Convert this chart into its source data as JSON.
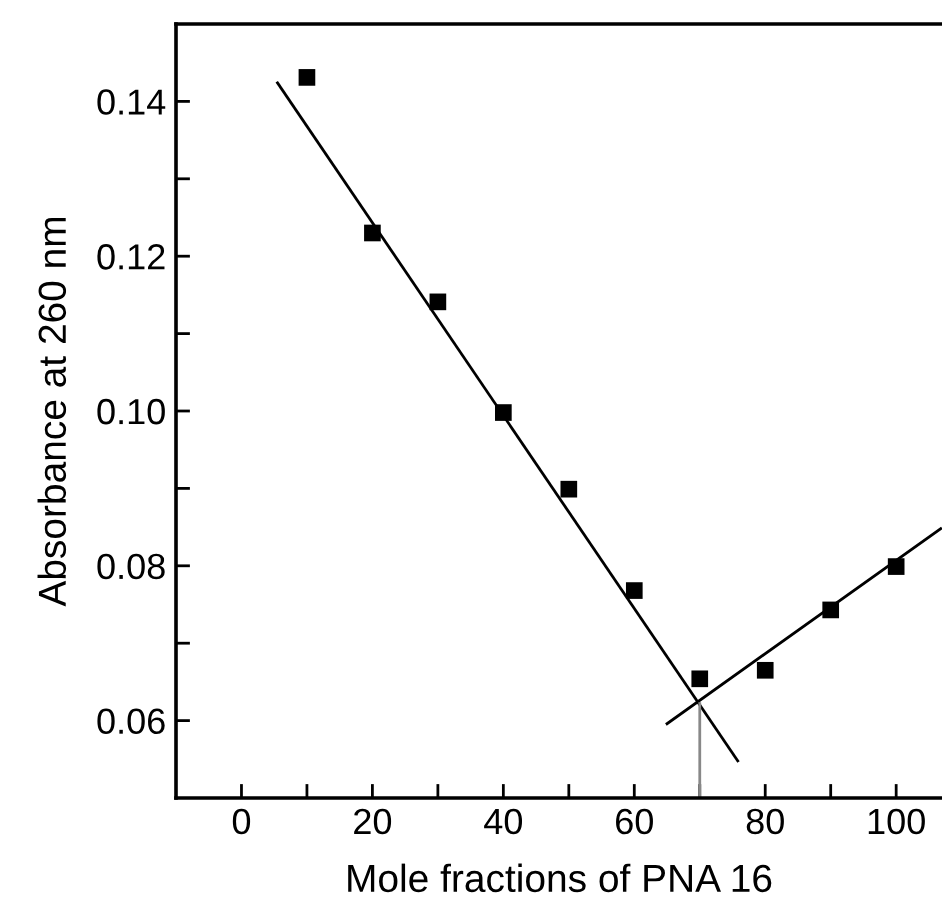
{
  "chart_data": {
    "type": "scatter",
    "xlabel": "Mole fractions of PNA 16",
    "ylabel": "Absorbance at 260 nm",
    "x": [
      10,
      20,
      30,
      40,
      50,
      60,
      70,
      80,
      90,
      100
    ],
    "series": [
      {
        "color": "#000000",
        "marker": "square",
        "values": [
          0.1431,
          0.123,
          0.1141,
          0.0998,
          0.0899,
          0.0768,
          0.0654,
          0.0665,
          0.0743,
          0.0799
        ]
      },
      {
        "type": "line",
        "color": "#000000",
        "x": [
          5.5,
          75.8
        ],
        "values": [
          0.1424,
          0.0548
        ]
      },
      {
        "type": "line",
        "color": "#000000",
        "x": [
          65.0,
          106.8
        ],
        "values": [
          0.0596,
          0.0848
        ]
      },
      {
        "type": "line",
        "color": "#888888",
        "x": [
          70,
          70
        ],
        "values": [
          0.0622,
          0.05
        ]
      }
    ],
    "xlim": [
      -10,
      107
    ],
    "ylim": [
      0.05,
      0.15
    ],
    "xticks": [
      0,
      {
        "value": 10,
        "label": null
      },
      20,
      {
        "value": 30,
        "label": null
      },
      40,
      {
        "value": 50,
        "label": null
      },
      60,
      {
        "value": 70,
        "label": null
      },
      80,
      {
        "value": 90,
        "label": null
      },
      100
    ],
    "yticks": [
      {
        "value": 0.06,
        "label": "0.06"
      },
      {
        "value": 0.07,
        "label": null
      },
      {
        "value": 0.08,
        "label": "0.08"
      },
      {
        "value": 0.09,
        "label": null
      },
      {
        "value": 0.1,
        "label": "0.10"
      },
      {
        "value": 0.11,
        "label": null
      },
      {
        "value": 0.12,
        "label": "0.12"
      },
      {
        "value": 0.13,
        "label": null
      },
      {
        "value": 0.14,
        "label": "0.14"
      }
    ],
    "grid": false,
    "legend": false
  }
}
